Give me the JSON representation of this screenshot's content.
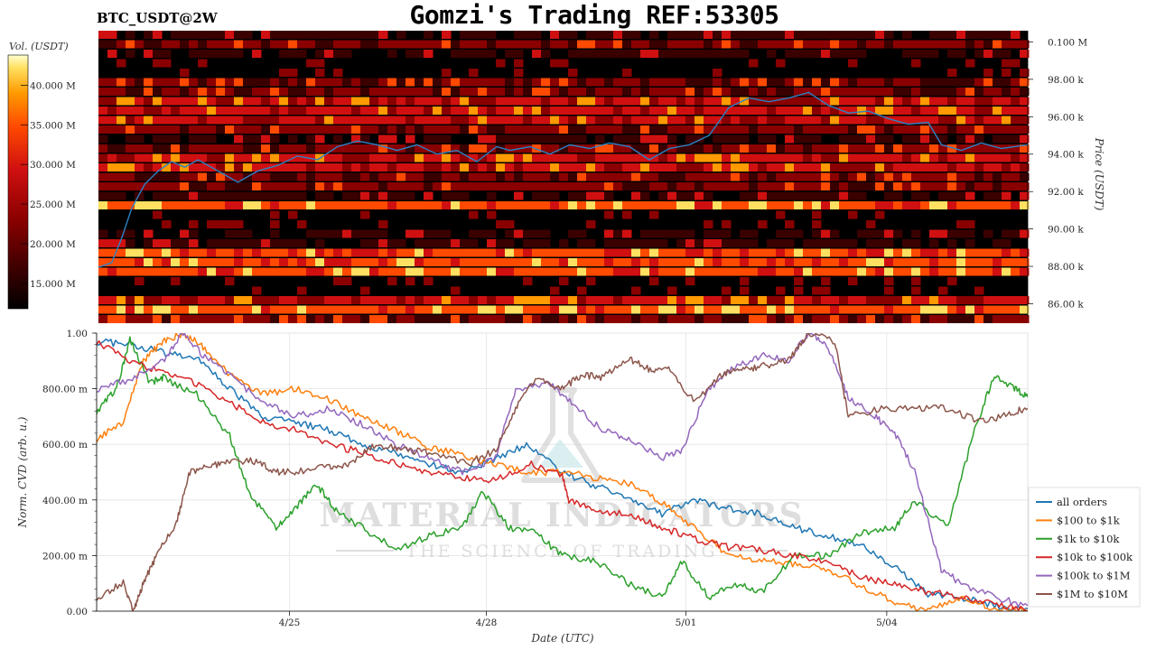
{
  "header": {
    "title": "Gomzi's Trading REF:53305",
    "pair": "BTC_USDT@2W"
  },
  "watermark": {
    "line1": "MATERIAL INDICATORS",
    "line2": "THE SCIENCE OF TRADING"
  },
  "chart_data": [
    {
      "type": "heatmap",
      "ylabel": "Price (USDT)",
      "colorbar_label": "Vol. (USDT)",
      "colorbar_ticks": [
        "40.000 M",
        "35.000 M",
        "30.000 M",
        "25.000 M",
        "20.000 M",
        "15.000 M"
      ],
      "colorbar_values": [
        40,
        35,
        30,
        25,
        20,
        15
      ],
      "colorbar_range": [
        11.8,
        43.8
      ],
      "price_ticks": [
        "0.100 M",
        "98.00 k",
        "96.00 k",
        "94.00 k",
        "92.00 k",
        "90.00 k",
        "88.00 k",
        "86.00 k"
      ],
      "price_values": [
        100000,
        98000,
        96000,
        94000,
        92000,
        90000,
        88000,
        86000
      ],
      "ylim": [
        85300,
        100600
      ],
      "xlim": [
        0,
        14
      ],
      "colors": [
        "#000000",
        "#3a0000",
        "#8a0000",
        "#d01010",
        "#ff4a00",
        "#ff9a00",
        "#ffe060",
        "#ffffff"
      ],
      "line_color": "#2b83c5",
      "price_path": [
        [
          0.0,
          87.95
        ],
        [
          0.2,
          88.2
        ],
        [
          0.35,
          89.5
        ],
        [
          0.5,
          91.1
        ],
        [
          0.7,
          92.4
        ],
        [
          0.9,
          93.1
        ],
        [
          1.1,
          93.6
        ],
        [
          1.3,
          93.3
        ],
        [
          1.5,
          93.7
        ],
        [
          1.8,
          93.1
        ],
        [
          2.1,
          92.5
        ],
        [
          2.4,
          93.1
        ],
        [
          2.7,
          93.4
        ],
        [
          3.0,
          93.9
        ],
        [
          3.3,
          93.7
        ],
        [
          3.6,
          94.4
        ],
        [
          3.9,
          94.7
        ],
        [
          4.2,
          94.5
        ],
        [
          4.5,
          94.2
        ],
        [
          4.8,
          94.5
        ],
        [
          5.1,
          94.0
        ],
        [
          5.4,
          94.2
        ],
        [
          5.7,
          93.6
        ],
        [
          6.0,
          94.4
        ],
        [
          6.2,
          94.2
        ],
        [
          6.5,
          94.4
        ],
        [
          6.8,
          94.0
        ],
        [
          7.1,
          94.5
        ],
        [
          7.4,
          94.3
        ],
        [
          7.7,
          94.6
        ],
        [
          8.0,
          94.4
        ],
        [
          8.3,
          93.7
        ],
        [
          8.6,
          94.3
        ],
        [
          8.9,
          94.5
        ],
        [
          9.2,
          95.0
        ],
        [
          9.5,
          96.5
        ],
        [
          9.8,
          97.0
        ],
        [
          10.1,
          96.8
        ],
        [
          10.4,
          97.0
        ],
        [
          10.7,
          97.3
        ],
        [
          11.0,
          96.6
        ],
        [
          11.3,
          96.2
        ],
        [
          11.6,
          96.3
        ],
        [
          11.9,
          95.9
        ],
        [
          12.2,
          95.6
        ],
        [
          12.5,
          95.7
        ],
        [
          12.7,
          94.5
        ],
        [
          13.0,
          94.2
        ],
        [
          13.3,
          94.6
        ],
        [
          13.6,
          94.3
        ],
        [
          14.0,
          94.5
        ]
      ]
    },
    {
      "type": "line",
      "title": "",
      "xlabel": "Date (UTC)",
      "ylabel": "Norm. CVD (arb. u.)",
      "ylim": [
        0,
        1
      ],
      "xlim": [
        0,
        14
      ],
      "y_ticks": [
        "0.00",
        "200.00 m",
        "400.00 m",
        "600.00 m",
        "800.00 m",
        "1.00"
      ],
      "y_tick_values": [
        0,
        0.2,
        0.4,
        0.6,
        0.8,
        1.0
      ],
      "x_ticks": [
        "4/25",
        "4/28",
        "5/01",
        "5/04"
      ],
      "x_tick_values": [
        2.9,
        5.86,
        8.86,
        11.88
      ],
      "legend_position": "right",
      "series": [
        {
          "name": "all orders",
          "color": "#1f77b4",
          "values": [
            [
              0,
              0.97
            ],
            [
              0.5,
              0.96
            ],
            [
              1,
              0.93
            ],
            [
              1.5,
              0.91
            ],
            [
              2,
              0.8
            ],
            [
              2.5,
              0.7
            ],
            [
              3,
              0.68
            ],
            [
              3.5,
              0.65
            ],
            [
              4,
              0.6
            ],
            [
              4.5,
              0.57
            ],
            [
              5,
              0.53
            ],
            [
              5.5,
              0.5
            ],
            [
              6,
              0.55
            ],
            [
              6.5,
              0.6
            ],
            [
              7,
              0.5
            ],
            [
              7.5,
              0.45
            ],
            [
              8,
              0.41
            ],
            [
              8.5,
              0.35
            ],
            [
              9,
              0.4
            ],
            [
              9.5,
              0.37
            ],
            [
              10,
              0.35
            ],
            [
              10.5,
              0.3
            ],
            [
              11,
              0.27
            ],
            [
              11.5,
              0.24
            ],
            [
              12,
              0.16
            ],
            [
              12.5,
              0.06
            ],
            [
              13,
              0.05
            ],
            [
              13.5,
              0.02
            ],
            [
              14,
              0.01
            ]
          ]
        },
        {
          "name": "$100 to $1k",
          "color": "#ff7f0e",
          "values": [
            [
              0,
              0.62
            ],
            [
              0.4,
              0.68
            ],
            [
              0.7,
              0.9
            ],
            [
              1,
              0.97
            ],
            [
              1.3,
              1.0
            ],
            [
              1.6,
              0.95
            ],
            [
              2,
              0.85
            ],
            [
              2.5,
              0.78
            ],
            [
              3,
              0.8
            ],
            [
              3.5,
              0.76
            ],
            [
              4,
              0.7
            ],
            [
              4.5,
              0.65
            ],
            [
              5,
              0.59
            ],
            [
              5.5,
              0.56
            ],
            [
              6,
              0.53
            ],
            [
              6.5,
              0.5
            ],
            [
              7,
              0.5
            ],
            [
              7.5,
              0.48
            ],
            [
              8,
              0.46
            ],
            [
              8.5,
              0.39
            ],
            [
              9,
              0.3
            ],
            [
              9.5,
              0.2
            ],
            [
              10,
              0.18
            ],
            [
              10.5,
              0.17
            ],
            [
              11,
              0.15
            ],
            [
              11.5,
              0.09
            ],
            [
              12,
              0.03
            ],
            [
              12.5,
              0.0
            ],
            [
              13,
              0.05
            ],
            [
              13.5,
              0.01
            ],
            [
              14,
              0.0
            ]
          ]
        },
        {
          "name": "$1k to $10k",
          "color": "#2ca02c",
          "values": [
            [
              0,
              0.72
            ],
            [
              0.3,
              0.8
            ],
            [
              0.5,
              0.98
            ],
            [
              0.8,
              0.82
            ],
            [
              1,
              0.84
            ],
            [
              1.5,
              0.78
            ],
            [
              2,
              0.63
            ],
            [
              2.3,
              0.42
            ],
            [
              2.7,
              0.3
            ],
            [
              3,
              0.37
            ],
            [
              3.3,
              0.46
            ],
            [
              3.6,
              0.36
            ],
            [
              4,
              0.3
            ],
            [
              4.5,
              0.22
            ],
            [
              5,
              0.27
            ],
            [
              5.5,
              0.3
            ],
            [
              5.8,
              0.43
            ],
            [
              6.2,
              0.3
            ],
            [
              6.6,
              0.28
            ],
            [
              7,
              0.2
            ],
            [
              7.5,
              0.18
            ],
            [
              8,
              0.1
            ],
            [
              8.5,
              0.05
            ],
            [
              8.8,
              0.18
            ],
            [
              9.2,
              0.05
            ],
            [
              9.6,
              0.1
            ],
            [
              10,
              0.07
            ],
            [
              10.5,
              0.2
            ],
            [
              11,
              0.2
            ],
            [
              11.5,
              0.28
            ],
            [
              12,
              0.3
            ],
            [
              12.3,
              0.4
            ],
            [
              12.8,
              0.3
            ],
            [
              13.2,
              0.65
            ],
            [
              13.5,
              0.85
            ],
            [
              13.8,
              0.8
            ],
            [
              14,
              0.77
            ]
          ]
        },
        {
          "name": "$10k to $100k",
          "color": "#d62728",
          "values": [
            [
              0,
              0.97
            ],
            [
              0.5,
              0.9
            ],
            [
              1,
              0.86
            ],
            [
              1.5,
              0.82
            ],
            [
              2,
              0.75
            ],
            [
              2.5,
              0.68
            ],
            [
              3,
              0.65
            ],
            [
              3.5,
              0.6
            ],
            [
              4,
              0.57
            ],
            [
              4.5,
              0.53
            ],
            [
              5,
              0.5
            ],
            [
              5.5,
              0.48
            ],
            [
              6,
              0.47
            ],
            [
              6.5,
              0.53
            ],
            [
              7,
              0.49
            ],
            [
              7.1,
              0.4
            ],
            [
              7.5,
              0.36
            ],
            [
              8,
              0.35
            ],
            [
              8.5,
              0.3
            ],
            [
              9,
              0.26
            ],
            [
              9.5,
              0.23
            ],
            [
              10,
              0.22
            ],
            [
              10.5,
              0.2
            ],
            [
              11,
              0.18
            ],
            [
              11.5,
              0.12
            ],
            [
              12,
              0.1
            ],
            [
              12.5,
              0.07
            ],
            [
              13,
              0.05
            ],
            [
              13.5,
              0.03
            ],
            [
              14,
              0.0
            ]
          ]
        },
        {
          "name": "$100k to $1M",
          "color": "#9467bd",
          "values": [
            [
              0,
              0.8
            ],
            [
              0.5,
              0.83
            ],
            [
              1,
              0.9
            ],
            [
              1.3,
              1.0
            ],
            [
              1.6,
              0.92
            ],
            [
              2,
              0.85
            ],
            [
              2.5,
              0.75
            ],
            [
              3,
              0.7
            ],
            [
              3.5,
              0.73
            ],
            [
              4,
              0.67
            ],
            [
              4.5,
              0.6
            ],
            [
              5,
              0.55
            ],
            [
              5.5,
              0.5
            ],
            [
              6,
              0.55
            ],
            [
              6.3,
              0.8
            ],
            [
              6.8,
              0.82
            ],
            [
              7.2,
              0.74
            ],
            [
              7.6,
              0.65
            ],
            [
              8,
              0.62
            ],
            [
              8.5,
              0.55
            ],
            [
              8.8,
              0.58
            ],
            [
              9.2,
              0.8
            ],
            [
              9.6,
              0.88
            ],
            [
              10,
              0.92
            ],
            [
              10.4,
              0.9
            ],
            [
              10.7,
              1.0
            ],
            [
              11,
              0.95
            ],
            [
              11.3,
              0.77
            ],
            [
              11.7,
              0.7
            ],
            [
              12,
              0.64
            ],
            [
              12.3,
              0.5
            ],
            [
              12.7,
              0.15
            ],
            [
              13,
              0.1
            ],
            [
              13.5,
              0.05
            ],
            [
              14,
              0.02
            ]
          ]
        },
        {
          "name": "$1M to $10M",
          "color": "#8c564b",
          "values": [
            [
              0,
              0.05
            ],
            [
              0.4,
              0.1
            ],
            [
              0.55,
              0.0
            ],
            [
              0.7,
              0.1
            ],
            [
              0.9,
              0.2
            ],
            [
              1.2,
              0.32
            ],
            [
              1.4,
              0.5
            ],
            [
              1.7,
              0.52
            ],
            [
              2,
              0.54
            ],
            [
              2.4,
              0.54
            ],
            [
              2.7,
              0.5
            ],
            [
              3,
              0.5
            ],
            [
              3.5,
              0.52
            ],
            [
              3.8,
              0.53
            ],
            [
              4.2,
              0.6
            ],
            [
              4.6,
              0.58
            ],
            [
              5,
              0.57
            ],
            [
              5.6,
              0.53
            ],
            [
              6,
              0.58
            ],
            [
              6.3,
              0.73
            ],
            [
              6.6,
              0.84
            ],
            [
              7,
              0.8
            ],
            [
              7.3,
              0.85
            ],
            [
              7.6,
              0.84
            ],
            [
              8,
              0.91
            ],
            [
              8.3,
              0.87
            ],
            [
              8.6,
              0.87
            ],
            [
              9,
              0.75
            ],
            [
              9.4,
              0.85
            ],
            [
              9.7,
              0.87
            ],
            [
              10,
              0.88
            ],
            [
              10.4,
              0.9
            ],
            [
              10.7,
              1.0
            ],
            [
              11.1,
              0.97
            ],
            [
              11.3,
              0.7
            ],
            [
              11.8,
              0.73
            ],
            [
              12.3,
              0.73
            ],
            [
              12.8,
              0.73
            ],
            [
              13.3,
              0.68
            ],
            [
              13.7,
              0.71
            ],
            [
              14,
              0.73
            ]
          ]
        }
      ]
    }
  ]
}
